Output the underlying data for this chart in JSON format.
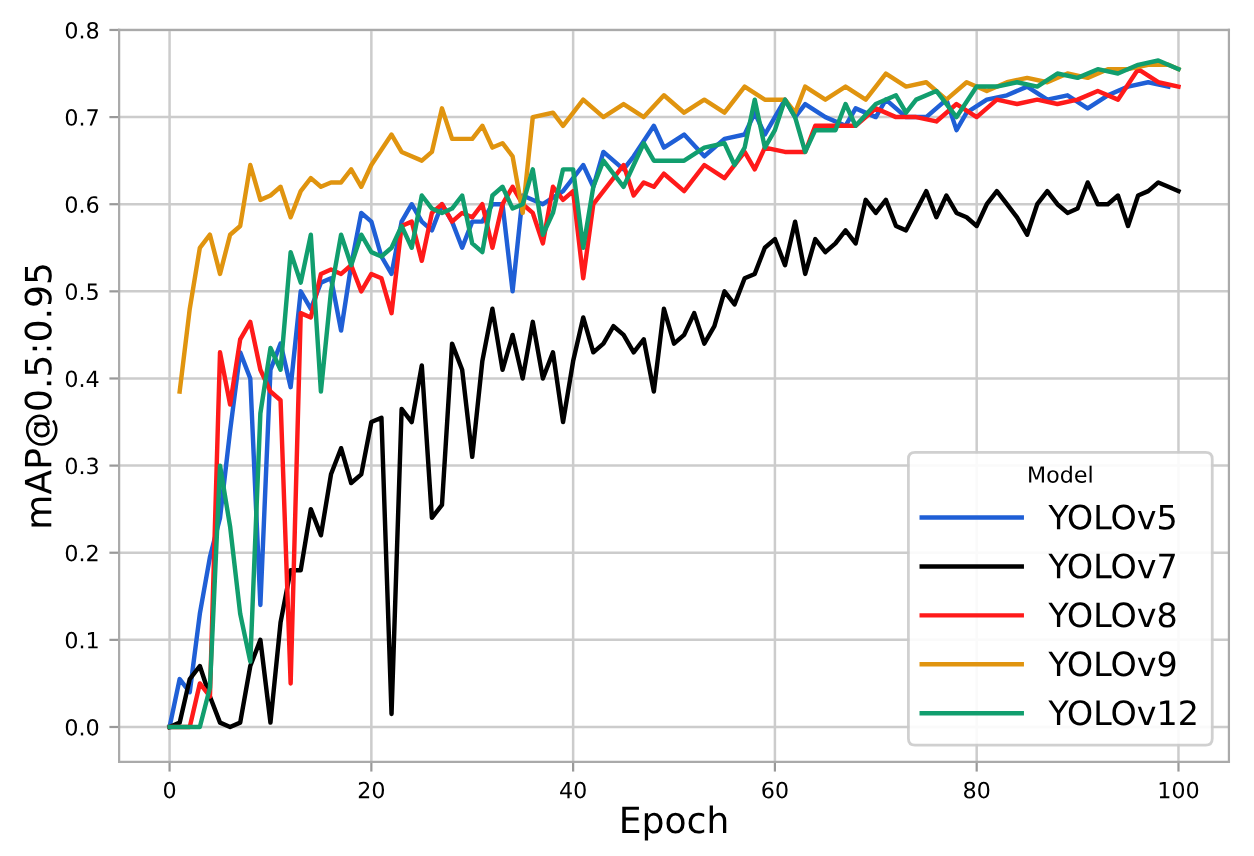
{
  "chart_data": {
    "type": "line",
    "xlabel": "Epoch",
    "ylabel": "mAP@0.5:0.95",
    "legend_title": "Model",
    "legend": "bottom right",
    "grid": true,
    "line_style": "solid",
    "marker": "none",
    "xlim": [
      -5,
      105
    ],
    "xticks": [
      0,
      20,
      40,
      60,
      80,
      100
    ],
    "ylim": [
      -0.04,
      0.8
    ],
    "yticks": [
      {
        "value": 0,
        "label": "0.0"
      },
      0.1,
      0.2,
      0.3,
      0.4,
      0.5,
      0.6,
      0.7,
      0.8
    ],
    "series": [
      {
        "name": "YOLOv5",
        "color": "#1f5fd6",
        "x": [
          0,
          1,
          2,
          3,
          4,
          5,
          6,
          7,
          8,
          9,
          10,
          11,
          12,
          13,
          14,
          15,
          16,
          17,
          18,
          19,
          20,
          21,
          22,
          23,
          24,
          25,
          26,
          27,
          28,
          29,
          30,
          31,
          32,
          33,
          34,
          35,
          37,
          39,
          41,
          42,
          43,
          45,
          46,
          48,
          49,
          51,
          53,
          55,
          57,
          58,
          59,
          61,
          62,
          63,
          65,
          67,
          68,
          70,
          71,
          73,
          75,
          77,
          78,
          79,
          81,
          83,
          85,
          87,
          89,
          91,
          93,
          95,
          97,
          99
        ],
        "values": [
          0,
          0.055,
          0.04,
          0.13,
          0.195,
          0.24,
          0.34,
          0.43,
          0.4,
          0.14,
          0.41,
          0.44,
          0.39,
          0.5,
          0.48,
          0.51,
          0.515,
          0.455,
          0.53,
          0.59,
          0.58,
          0.54,
          0.52,
          0.58,
          0.6,
          0.58,
          0.57,
          0.6,
          0.58,
          0.55,
          0.58,
          0.58,
          0.6,
          0.6,
          0.5,
          0.61,
          0.6,
          0.615,
          0.645,
          0.62,
          0.66,
          0.64,
          0.655,
          0.69,
          0.665,
          0.68,
          0.655,
          0.675,
          0.68,
          0.705,
          0.68,
          0.72,
          0.7,
          0.715,
          0.7,
          0.69,
          0.71,
          0.7,
          0.72,
          0.7,
          0.7,
          0.72,
          0.685,
          0.705,
          0.72,
          0.725,
          0.735,
          0.72,
          0.725,
          0.71,
          0.725,
          0.735,
          0.74,
          0.735
        ]
      },
      {
        "name": "YOLOv7",
        "color": "#000000",
        "x": [
          0,
          1,
          2,
          3,
          4,
          5,
          6,
          7,
          8,
          9,
          10,
          11,
          12,
          13,
          14,
          15,
          16,
          17,
          18,
          19,
          20,
          21,
          22,
          23,
          24,
          25,
          26,
          27,
          28,
          29,
          30,
          31,
          32,
          33,
          34,
          35,
          36,
          37,
          38,
          39,
          40,
          41,
          42,
          43,
          44,
          45,
          46,
          47,
          48,
          49,
          50,
          51,
          52,
          53,
          54,
          55,
          56,
          57,
          58,
          59,
          60,
          61,
          62,
          63,
          64,
          65,
          66,
          67,
          68,
          69,
          70,
          71,
          72,
          73,
          75,
          76,
          77,
          78,
          79,
          80,
          81,
          82,
          83,
          84,
          85,
          86,
          87,
          88,
          89,
          90,
          91,
          92,
          93,
          94,
          95,
          96,
          97,
          98,
          99,
          100
        ],
        "values": [
          0,
          0.005,
          0.055,
          0.07,
          0.035,
          0.005,
          0,
          0.005,
          0.07,
          0.1,
          0.005,
          0.12,
          0.18,
          0.18,
          0.25,
          0.22,
          0.29,
          0.32,
          0.28,
          0.29,
          0.35,
          0.355,
          0.015,
          0.365,
          0.35,
          0.415,
          0.24,
          0.255,
          0.44,
          0.41,
          0.31,
          0.42,
          0.48,
          0.41,
          0.45,
          0.4,
          0.465,
          0.4,
          0.43,
          0.35,
          0.42,
          0.47,
          0.43,
          0.44,
          0.46,
          0.45,
          0.43,
          0.445,
          0.385,
          0.48,
          0.44,
          0.45,
          0.475,
          0.44,
          0.46,
          0.5,
          0.485,
          0.515,
          0.52,
          0.55,
          0.56,
          0.53,
          0.58,
          0.52,
          0.56,
          0.545,
          0.555,
          0.57,
          0.555,
          0.605,
          0.59,
          0.605,
          0.575,
          0.57,
          0.615,
          0.585,
          0.61,
          0.59,
          0.585,
          0.575,
          0.6,
          0.615,
          0.6,
          0.585,
          0.565,
          0.6,
          0.615,
          0.6,
          0.59,
          0.595,
          0.625,
          0.6,
          0.6,
          0.61,
          0.575,
          0.61,
          0.615,
          0.625,
          0.62,
          0.615
        ]
      },
      {
        "name": "YOLOv8",
        "color": "#ff1a1a",
        "x": [
          0,
          2,
          3,
          4,
          5,
          6,
          7,
          8,
          9,
          10,
          11,
          12,
          13,
          14,
          15,
          16,
          17,
          18,
          19,
          20,
          21,
          22,
          23,
          24,
          25,
          26,
          27,
          28,
          29,
          30,
          31,
          32,
          33,
          34,
          35,
          36,
          37,
          38,
          39,
          40,
          41,
          42,
          43,
          44,
          45,
          46,
          47,
          48,
          49,
          51,
          53,
          55,
          57,
          58,
          59,
          61,
          63,
          64,
          66,
          68,
          70,
          72,
          74,
          76,
          78,
          80,
          82,
          84,
          86,
          88,
          90,
          92,
          94,
          96,
          98,
          100
        ],
        "values": [
          0,
          0,
          0.05,
          0.035,
          0.43,
          0.37,
          0.445,
          0.465,
          0.41,
          0.385,
          0.375,
          0.05,
          0.475,
          0.47,
          0.52,
          0.525,
          0.52,
          0.53,
          0.5,
          0.52,
          0.515,
          0.475,
          0.575,
          0.58,
          0.535,
          0.59,
          0.6,
          0.58,
          0.59,
          0.585,
          0.6,
          0.55,
          0.6,
          0.62,
          0.6,
          0.59,
          0.555,
          0.62,
          0.605,
          0.615,
          0.515,
          0.6,
          0.615,
          0.63,
          0.645,
          0.61,
          0.625,
          0.62,
          0.635,
          0.615,
          0.645,
          0.63,
          0.66,
          0.64,
          0.665,
          0.66,
          0.66,
          0.69,
          0.69,
          0.69,
          0.71,
          0.7,
          0.7,
          0.695,
          0.715,
          0.7,
          0.72,
          0.715,
          0.72,
          0.715,
          0.72,
          0.73,
          0.72,
          0.755,
          0.74,
          0.735
        ]
      },
      {
        "name": "YOLOv9",
        "color": "#e0940f",
        "x": [
          1,
          2,
          3,
          4,
          5,
          6,
          7,
          8,
          9,
          10,
          11,
          12,
          13,
          14,
          15,
          16,
          17,
          18,
          19,
          20,
          22,
          23,
          25,
          26,
          27,
          28,
          30,
          31,
          32,
          33,
          34,
          35,
          36,
          38,
          39,
          41,
          43,
          45,
          47,
          49,
          51,
          53,
          55,
          57,
          59,
          61,
          62,
          63,
          65,
          67,
          69,
          71,
          73,
          75,
          77,
          79,
          81,
          83,
          85,
          87,
          89,
          91,
          93,
          95,
          97,
          99,
          100
        ],
        "values": [
          0.385,
          0.48,
          0.55,
          0.565,
          0.52,
          0.565,
          0.575,
          0.645,
          0.605,
          0.61,
          0.62,
          0.585,
          0.615,
          0.63,
          0.62,
          0.625,
          0.625,
          0.64,
          0.62,
          0.645,
          0.68,
          0.66,
          0.65,
          0.66,
          0.71,
          0.675,
          0.675,
          0.69,
          0.665,
          0.67,
          0.655,
          0.59,
          0.7,
          0.705,
          0.69,
          0.72,
          0.7,
          0.715,
          0.7,
          0.725,
          0.705,
          0.72,
          0.705,
          0.735,
          0.72,
          0.72,
          0.705,
          0.735,
          0.72,
          0.735,
          0.72,
          0.75,
          0.735,
          0.74,
          0.72,
          0.74,
          0.73,
          0.74,
          0.745,
          0.74,
          0.75,
          0.745,
          0.755,
          0.755,
          0.76,
          0.76,
          0.755
        ]
      },
      {
        "name": "YOLOv12",
        "color": "#119e6e",
        "x": [
          0,
          2,
          3,
          4,
          5,
          6,
          7,
          8,
          9,
          10,
          11,
          12,
          13,
          14,
          15,
          16,
          17,
          18,
          19,
          20,
          21,
          22,
          23,
          24,
          25,
          26,
          27,
          28,
          29,
          30,
          31,
          32,
          33,
          34,
          35,
          36,
          37,
          38,
          39,
          40,
          41,
          42,
          43,
          45,
          47,
          48,
          49,
          51,
          53,
          55,
          56,
          57,
          58,
          59,
          60,
          61,
          62,
          63,
          64,
          66,
          67,
          68,
          70,
          72,
          73,
          74,
          76,
          78,
          80,
          82,
          84,
          86,
          88,
          90,
          92,
          94,
          96,
          98,
          100
        ],
        "values": [
          0,
          0,
          0,
          0.045,
          0.3,
          0.23,
          0.13,
          0.075,
          0.36,
          0.435,
          0.41,
          0.545,
          0.51,
          0.565,
          0.385,
          0.5,
          0.565,
          0.53,
          0.565,
          0.545,
          0.54,
          0.55,
          0.575,
          0.55,
          0.61,
          0.595,
          0.59,
          0.595,
          0.61,
          0.555,
          0.545,
          0.61,
          0.62,
          0.595,
          0.6,
          0.64,
          0.565,
          0.59,
          0.64,
          0.64,
          0.55,
          0.62,
          0.65,
          0.62,
          0.67,
          0.65,
          0.65,
          0.65,
          0.665,
          0.67,
          0.645,
          0.665,
          0.72,
          0.665,
          0.685,
          0.72,
          0.7,
          0.66,
          0.685,
          0.685,
          0.715,
          0.69,
          0.715,
          0.725,
          0.705,
          0.72,
          0.73,
          0.7,
          0.735,
          0.735,
          0.74,
          0.735,
          0.75,
          0.745,
          0.755,
          0.75,
          0.76,
          0.765,
          0.755
        ]
      }
    ]
  }
}
